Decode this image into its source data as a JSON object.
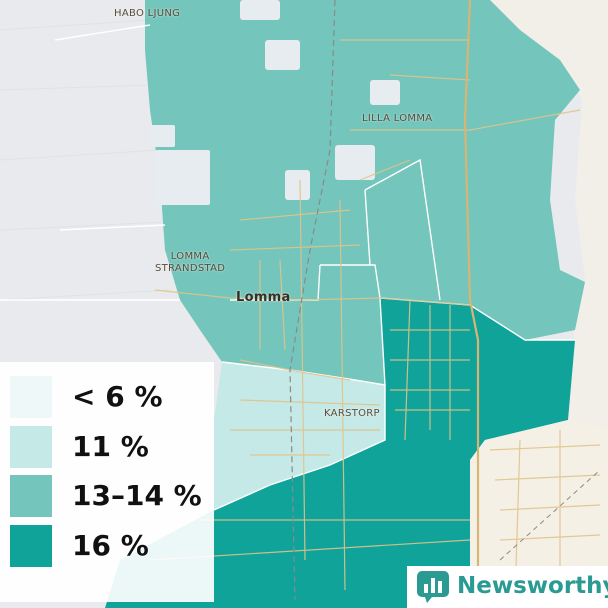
{
  "colors": {
    "sea": "#e8eaee",
    "land_outside": "#f2efe9",
    "tier_lt6": "#eef8f8",
    "tier_11": "#c5e9e6",
    "tier_13_14": "#74c5bb",
    "tier_16": "#0fa39a",
    "road": "#e0c48a",
    "brand": "#2a9a93"
  },
  "places": {
    "habo_ljung": "HABO LJUNG",
    "lilla_lomma": "LILLA LOMMA",
    "lomma_strandstad_line1": "LOMMA",
    "lomma_strandstad_line2": "STRANDSTAD",
    "lomma": "Lomma",
    "karstorp": "KARSTORP"
  },
  "legend": {
    "items": [
      {
        "label": "< 6 %",
        "color": "#eef8f8"
      },
      {
        "label": "11 %",
        "color": "#c5e9e6"
      },
      {
        "label": "13–14 %",
        "color": "#74c5bb"
      },
      {
        "label": "16 %",
        "color": "#0fa39a"
      }
    ]
  },
  "brand": {
    "name": "Newsworthy",
    "icon": "bar-chart-icon"
  }
}
